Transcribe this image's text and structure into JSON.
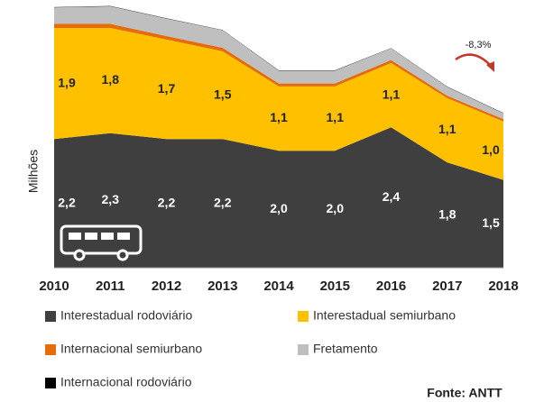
{
  "chart_data": {
    "type": "stacked_area",
    "y_label": "Milhões",
    "annotation": "-8,3%",
    "source": "Fonte: ANTT",
    "categories": [
      "2010",
      "2011",
      "2012",
      "2013",
      "2014",
      "2015",
      "2016",
      "2017",
      "2018"
    ],
    "ylim": [
      0,
      4.5
    ],
    "series": [
      {
        "name": "Interestadual rodoviário",
        "color": "#3f3f3f",
        "values": [
          2.2,
          2.3,
          2.2,
          2.2,
          2.0,
          2.0,
          2.4,
          1.8,
          1.5
        ],
        "value_labels": [
          "2,2",
          "2,3",
          "2,2",
          "2,2",
          "2,0",
          "2,0",
          "2,4",
          "1,8",
          "1,5"
        ]
      },
      {
        "name": "Interestadual semiurbano",
        "color": "#ffc000",
        "values": [
          1.9,
          1.8,
          1.7,
          1.5,
          1.1,
          1.1,
          1.1,
          1.1,
          1.0
        ],
        "value_labels": [
          "1,9",
          "1,8",
          "1,7",
          "1,5",
          "1,1",
          "1,1",
          "1,1",
          "1,1",
          "1,0"
        ]
      },
      {
        "name": "Internacional semiurbano",
        "color": "#e46c0a",
        "values": [
          0.07,
          0.07,
          0.06,
          0.06,
          0.05,
          0.05,
          0.05,
          0.04,
          0.04
        ]
      },
      {
        "name": "Fretamento",
        "color": "#bfbfbf",
        "values": [
          0.28,
          0.3,
          0.3,
          0.3,
          0.22,
          0.22,
          0.2,
          0.15,
          0.1
        ]
      },
      {
        "name": "Internacional rodoviário",
        "color": "#000000",
        "values": [
          0.005,
          0.005,
          0.005,
          0.005,
          0.005,
          0.005,
          0.005,
          0.005,
          0.005
        ]
      }
    ]
  }
}
